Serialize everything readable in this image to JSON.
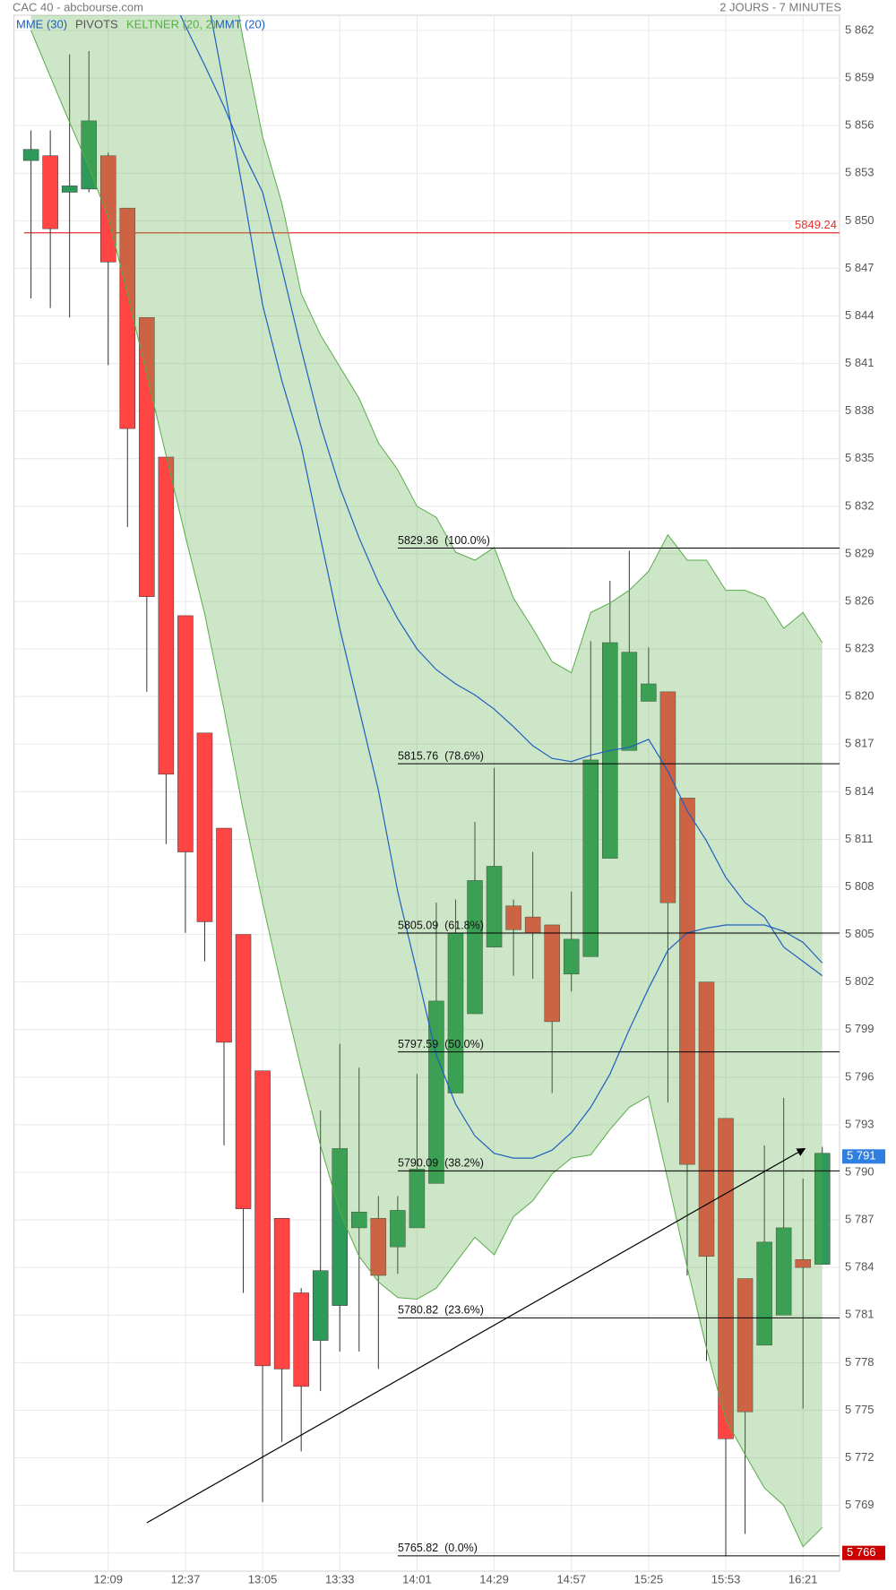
{
  "header": {
    "title": "CAC 40 - abcbourse.com",
    "period": "2 JOURS - 7 MINUTES"
  },
  "chart_data": {
    "type": "candlestick",
    "categories": [
      null,
      null,
      null,
      null,
      "12:09",
      null,
      null,
      null,
      "12:37",
      null,
      null,
      null,
      "13:05",
      null,
      null,
      null,
      "13:33",
      null,
      null,
      null,
      "14:01",
      null,
      null,
      null,
      "14:29",
      null,
      null,
      null,
      "14:57",
      null,
      null,
      null,
      "15:25",
      null,
      null,
      null,
      "15:53",
      null,
      null,
      null,
      "16:21",
      null
    ],
    "open": [
      5853.8,
      5854.1,
      5851.8,
      5852.0,
      5854.1,
      5850.8,
      5843.9,
      5835.1,
      5825.1,
      5817.7,
      5811.7,
      5805.0,
      5796.4,
      5787.1,
      5782.4,
      5779.4,
      5781.6,
      5786.5,
      5787.1,
      5785.3,
      5786.5,
      5789.3,
      5795.0,
      5800.0,
      5804.2,
      5806.8,
      5806.1,
      5805.6,
      5802.5,
      5803.6,
      5809.8,
      5816.6,
      5819.7,
      5820.3,
      5813.6,
      5802.0,
      5793.4,
      5783.3,
      5779.1,
      5781.0,
      5784.5,
      5784.2
    ],
    "high": [
      5855.7,
      5855.7,
      5860.5,
      5860.7,
      5854.3,
      5850.8,
      5843.9,
      5835.1,
      5825.1,
      5817.7,
      5811.7,
      5805.0,
      5796.4,
      5787.1,
      5782.7,
      5793.9,
      5798.1,
      5796.6,
      5788.5,
      5788.5,
      5796.2,
      5807.0,
      5807.2,
      5812.1,
      5815.5,
      5807.2,
      5810.2,
      5805.6,
      5807.7,
      5823.5,
      5827.3,
      5829.2,
      5823.1,
      5820.3,
      5813.6,
      5802.0,
      5793.4,
      5783.3,
      5791.7,
      5794.7,
      5789.6,
      5791.6
    ],
    "low": [
      5845.1,
      5844.5,
      5843.9,
      5851.8,
      5840.9,
      5830.7,
      5820.3,
      5810.7,
      5805.1,
      5803.3,
      5791.7,
      5782.4,
      5769.2,
      5773.0,
      5772.4,
      5776.2,
      5778.7,
      5778.7,
      5777.6,
      5783.6,
      5786.5,
      5789.3,
      5795.0,
      5800.0,
      5804.2,
      5802.4,
      5802.2,
      5795.0,
      5801.4,
      5803.6,
      5809.8,
      5816.6,
      5819.7,
      5794.4,
      5783.5,
      5778.1,
      5765.8,
      5767.2,
      5779.1,
      5781.0,
      5775.1,
      5784.2
    ],
    "close": [
      5854.5,
      5849.5,
      5852.2,
      5856.3,
      5847.4,
      5836.9,
      5826.3,
      5815.1,
      5810.2,
      5805.8,
      5798.2,
      5787.7,
      5777.8,
      5777.6,
      5776.5,
      5783.8,
      5791.5,
      5787.5,
      5783.5,
      5787.6,
      5790.2,
      5800.8,
      5805.1,
      5808.4,
      5809.3,
      5805.3,
      5805.1,
      5799.5,
      5804.7,
      5816.0,
      5823.4,
      5822.8,
      5820.8,
      5807.0,
      5790.5,
      5784.7,
      5773.2,
      5774.9,
      5785.6,
      5786.5,
      5784.0,
      5791.2
    ],
    "up_color": "#2e9a5a",
    "down_color": "#ff4444",
    "indicators": [
      {
        "name": "MME (30)",
        "color": "#1f5fbf",
        "values": [
          5883,
          5880.4,
          5877.8,
          5875.2,
          5872.6,
          5870,
          5867.5,
          5864.9,
          5862.3,
          5859.8,
          5857.2,
          5854.3,
          5851.8,
          5847.0,
          5841.9,
          5837.1,
          5833.2,
          5830.0,
          5827.2,
          5824.9,
          5823.0,
          5821.7,
          5820.8,
          5820.1,
          5819.2,
          5818.1,
          5816.9,
          5816.1,
          5815.9,
          5816.3,
          5816.6,
          5816.8,
          5817.3,
          5815.3,
          5812.8,
          5810.9,
          5808.6,
          5807.0,
          5806.1,
          5804.2,
          5803.3,
          5802.4
        ]
      },
      {
        "name": "MMT (20)",
        "color": "#1f5fbf",
        "values": [
          5926,
          5919,
          5912,
          5905,
          5898,
          5892,
          5885,
          5878,
          5871,
          5865,
          5858.5,
          5851.8,
          5844.7,
          5839.9,
          5835.8,
          5830.0,
          5824.3,
          5819.2,
          5814.1,
          5807.7,
          5802.6,
          5797.4,
          5794.3,
          5792.3,
          5791.2,
          5790.9,
          5790.9,
          5791.4,
          5792.5,
          5794.1,
          5796.2,
          5799.0,
          5801.6,
          5804.0,
          5805.1,
          5805.4,
          5805.6,
          5805.6,
          5805.6,
          5805.2,
          5804.5,
          5803.2
        ]
      }
    ],
    "keltner": {
      "name": "KELTNER (20, 2)",
      "color": "#58ac48",
      "upper": [
        5920,
        5915,
        5910,
        5905,
        5900,
        5895,
        5890,
        5884,
        5879,
        5874,
        5868,
        5861.4,
        5855.3,
        5851.1,
        5845.4,
        5842.8,
        5840.8,
        5838.8,
        5836.0,
        5834.3,
        5832.0,
        5831.3,
        5829.1,
        5828.6,
        5829.4,
        5826.2,
        5824.3,
        5822.2,
        5821.5,
        5825.3,
        5825.9,
        5826.7,
        5827.9,
        5830.2,
        5828.6,
        5828.6,
        5826.7,
        5826.7,
        5826.2,
        5824.3,
        5825.3,
        5823.4
      ],
      "lower": [
        5862.0,
        5859.1,
        5856.2,
        5853.4,
        5850.2,
        5845.4,
        5840.3,
        5835.2,
        5830.1,
        5825.2,
        5819.2,
        5812.8,
        5807.0,
        5801.6,
        5796.5,
        5791.7,
        5787.5,
        5784.7,
        5783.1,
        5782.1,
        5782.0,
        5782.7,
        5784.3,
        5785.9,
        5784.8,
        5787.2,
        5788.2,
        5789.9,
        5790.9,
        5791.1,
        5792.7,
        5794.1,
        5794.8,
        5789.5,
        5784.0,
        5778.9,
        5774.4,
        5772.2,
        5770.1,
        5769.0,
        5766.4,
        5767.6
      ]
    },
    "pivots": {
      "name": "PIVOTS",
      "legend_color": "#555555",
      "color": "#e53030",
      "levels": [
        5849.24
      ]
    },
    "fibonacci": [
      {
        "value": 5829.36,
        "label": "5829.36  (100.0%)"
      },
      {
        "value": 5815.76,
        "label": "5815.76  (78.6%)"
      },
      {
        "value": 5805.09,
        "label": "5805.09  (61.8%)"
      },
      {
        "value": 5797.59,
        "label": "5797.59  (50.0%)"
      },
      {
        "value": 5790.09,
        "label": "5790.09  (38.2%)"
      },
      {
        "value": 5780.82,
        "label": "5780.82  (23.6%)"
      },
      {
        "value": 5765.82,
        "label": "5765.82  (0.0%)"
      }
    ],
    "trendline": {
      "x": [
        6.0,
        40.1
      ],
      "y": [
        5767.9,
        5791.5
      ]
    },
    "last_price": {
      "value": 5791,
      "label": "5 791",
      "color": "#2f7fe0"
    },
    "low_marker": {
      "value": 5766,
      "label": "5 766",
      "color": "#cc0000"
    },
    "ylim": [
      5764.85,
      5862.96
    ],
    "yticks": [
      {
        "value": 5766,
        "label": "5 766"
      },
      {
        "value": 5769,
        "label": "5 769"
      },
      {
        "value": 5772,
        "label": "5 772"
      },
      {
        "value": 5775,
        "label": "5 775"
      },
      {
        "value": 5778,
        "label": "5 778"
      },
      {
        "value": 5781,
        "label": "5 781"
      },
      {
        "value": 5784,
        "label": "5 784"
      },
      {
        "value": 5787,
        "label": "5 787"
      },
      {
        "value": 5790,
        "label": "5 790"
      },
      {
        "value": 5793,
        "label": "5 793"
      },
      {
        "value": 5796,
        "label": "5 796"
      },
      {
        "value": 5799,
        "label": "5 799"
      },
      {
        "value": 5802,
        "label": "5 802"
      },
      {
        "value": 5805,
        "label": "5 805"
      },
      {
        "value": 5808,
        "label": "5 808"
      },
      {
        "value": 5811,
        "label": "5 811"
      },
      {
        "value": 5814,
        "label": "5 814"
      },
      {
        "value": 5817,
        "label": "5 817"
      },
      {
        "value": 5820,
        "label": "5 820"
      },
      {
        "value": 5823,
        "label": "5 823"
      },
      {
        "value": 5826,
        "label": "5 826"
      },
      {
        "value": 5829,
        "label": "5 829"
      },
      {
        "value": 5832,
        "label": "5 832"
      },
      {
        "value": 5835,
        "label": "5 835"
      },
      {
        "value": 5838,
        "label": "5 838"
      },
      {
        "value": 5841,
        "label": "5 841"
      },
      {
        "value": 5844,
        "label": "5 844"
      },
      {
        "value": 5847,
        "label": "5 847"
      },
      {
        "value": 5850,
        "label": "5 850"
      },
      {
        "value": 5853,
        "label": "5 853"
      },
      {
        "value": 5856,
        "label": "5 856"
      },
      {
        "value": 5859,
        "label": "5 859"
      },
      {
        "value": 5862,
        "label": "5 862"
      }
    ],
    "grid": true
  }
}
